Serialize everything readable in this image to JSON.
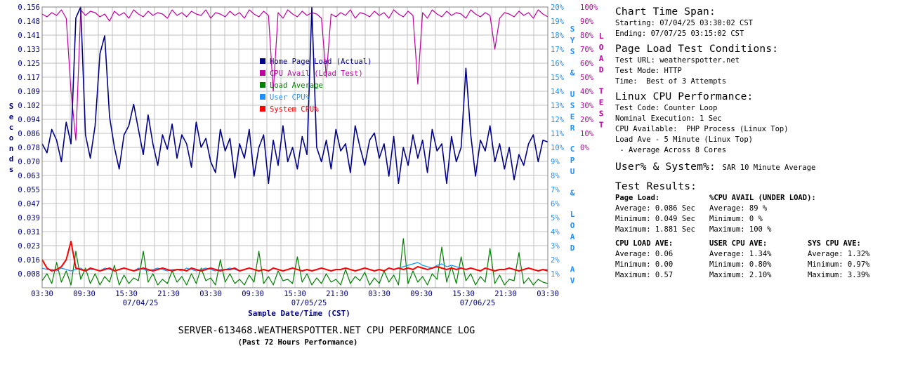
{
  "chart_data": {
    "type": "line",
    "title": "SERVER-613468.WEATHERSPOTTER.NET CPU PERFORMANCE LOG",
    "subtitle": "(Past 72 Hours Performance)",
    "xlabel": "Sample Date/Time (CST)",
    "ylabel_left": "Seconds",
    "ylabel_right_inner": "SYS & USER CPU & LOAD AV",
    "ylabel_right_outer": "LOAD TEST",
    "x_tick_labels": [
      "03:30",
      "09:30",
      "15:30",
      "21:30",
      "03:30",
      "09:30",
      "15:30",
      "21:30",
      "03:30",
      "09:30",
      "15:30",
      "21:30",
      "03:30"
    ],
    "date_labels": [
      "07/04/25",
      "07/05/25",
      "07/06/25"
    ],
    "y_left_ticks": [
      "0.156",
      "0.148",
      "0.141",
      "0.133",
      "0.125",
      "0.117",
      "0.109",
      "0.102",
      "0.094",
      "0.086",
      "0.078",
      "0.070",
      "0.063",
      "0.055",
      "0.047",
      "0.039",
      "0.031",
      "0.023",
      "0.016",
      "0.008"
    ],
    "y_left_range": [
      0,
      0.156
    ],
    "y_right_inner_ticks": [
      "20%",
      "19%",
      "18%",
      "17%",
      "16%",
      "15%",
      "14%",
      "13%",
      "12%",
      "11%",
      "10%",
      "9%",
      "8%",
      "7%",
      "6%",
      "5%",
      "4%",
      "3%",
      "2%",
      "1%"
    ],
    "y_right_outer_ticks": [
      "100%",
      "90%",
      "80%",
      "70%",
      "60%",
      "50%",
      "40%",
      "30%",
      "20%",
      "10%",
      "0%"
    ],
    "grid": true,
    "legend_placement": "top-center",
    "series": [
      {
        "name": "Home Page Load (Actual)",
        "color": "#00008b",
        "axis": "seconds",
        "values": [
          0.08,
          0.075,
          0.088,
          0.082,
          0.07,
          0.092,
          0.08,
          0.15,
          0.156,
          0.085,
          0.072,
          0.09,
          0.13,
          0.14,
          0.095,
          0.078,
          0.066,
          0.085,
          0.09,
          0.102,
          0.088,
          0.074,
          0.096,
          0.08,
          0.068,
          0.085,
          0.077,
          0.091,
          0.072,
          0.085,
          0.08,
          0.067,
          0.092,
          0.078,
          0.083,
          0.07,
          0.064,
          0.088,
          0.076,
          0.083,
          0.061,
          0.08,
          0.072,
          0.088,
          0.062,
          0.078,
          0.085,
          0.058,
          0.082,
          0.068,
          0.09,
          0.07,
          0.078,
          0.066,
          0.084,
          0.074,
          0.156,
          0.078,
          0.07,
          0.082,
          0.066,
          0.088,
          0.076,
          0.08,
          0.064,
          0.09,
          0.078,
          0.068,
          0.082,
          0.086,
          0.072,
          0.08,
          0.062,
          0.084,
          0.058,
          0.078,
          0.068,
          0.085,
          0.072,
          0.082,
          0.064,
          0.088,
          0.076,
          0.08,
          0.058,
          0.084,
          0.07,
          0.078,
          0.122,
          0.085,
          0.062,
          0.082,
          0.076,
          0.09,
          0.07,
          0.08,
          0.066,
          0.078,
          0.06,
          0.074,
          0.068,
          0.08,
          0.085,
          0.07,
          0.082,
          0.081
        ]
      },
      {
        "name": "CPU Avail (Load Test)",
        "color": "#c000a0",
        "axis": "load_test",
        "values": [
          95,
          93,
          96,
          94,
          98,
          92,
          40,
          5,
          98,
          94,
          97,
          96,
          93,
          95,
          90,
          97,
          94,
          96,
          92,
          98,
          95,
          93,
          97,
          94,
          96,
          95,
          92,
          98,
          94,
          96,
          93,
          97,
          95,
          94,
          98,
          92,
          96,
          95,
          93,
          97,
          94,
          96,
          92,
          98,
          95,
          93,
          97,
          94,
          40,
          96,
          92,
          98,
          95,
          93,
          97,
          94,
          96,
          95,
          92,
          50,
          95,
          93,
          96,
          94,
          98,
          92,
          96,
          95,
          93,
          97,
          94,
          96,
          92,
          98,
          95,
          93,
          97,
          94,
          45,
          96,
          92,
          98,
          95,
          93,
          97,
          94,
          96,
          95,
          92,
          98,
          95,
          93,
          96,
          94,
          70,
          92,
          96,
          95,
          93,
          97,
          94,
          96,
          92,
          98,
          95,
          93
        ]
      },
      {
        "name": "Load Average",
        "color": "#008000",
        "axis": "sys_user_pct",
        "values": [
          0.5,
          1.0,
          0.3,
          1.8,
          0.4,
          1.2,
          0.2,
          2.6,
          0.6,
          1.4,
          0.3,
          1.0,
          0.2,
          0.8,
          0.4,
          1.6,
          0.2,
          0.9,
          0.3,
          0.7,
          0.5,
          2.6,
          0.4,
          1.0,
          0.2,
          0.6,
          0.3,
          1.2,
          0.4,
          0.8,
          0.2,
          1.0,
          0.3,
          1.4,
          0.5,
          0.7,
          0.2,
          2.0,
          0.4,
          1.0,
          0.3,
          0.6,
          0.2,
          0.9,
          0.4,
          2.6,
          0.3,
          0.8,
          0.2,
          1.2,
          0.5,
          0.6,
          0.3,
          2.2,
          0.4,
          1.0,
          0.2,
          0.7,
          0.3,
          1.0,
          0.4,
          0.6,
          0.2,
          1.3,
          0.3,
          0.8,
          0.5,
          1.1,
          0.2,
          0.7,
          0.3,
          1.2,
          0.4,
          0.9,
          0.2,
          3.5,
          0.3,
          1.2,
          0.4,
          0.8,
          0.2,
          1.0,
          0.6,
          2.9,
          0.4,
          1.5,
          0.3,
          2.2,
          0.5,
          1.0,
          0.2,
          0.8,
          0.4,
          2.8,
          0.3,
          0.9,
          0.2,
          0.6,
          0.5,
          2.5,
          0.3,
          0.7,
          0.2,
          0.6,
          0.4,
          0.3
        ]
      },
      {
        "name": "User CPU%",
        "color": "#1e90ff",
        "axis": "sys_user_pct",
        "values": [
          1.4,
          1.3,
          1.3,
          1.2,
          1.4,
          1.3,
          1.2,
          1.3,
          1.4,
          1.2,
          1.3,
          1.3,
          1.2,
          1.4,
          1.3,
          1.2,
          1.3,
          1.4,
          1.3,
          1.2,
          1.4,
          1.3,
          1.2,
          1.3,
          1.4,
          1.3,
          1.2,
          1.3,
          1.3,
          1.2,
          1.4,
          1.3,
          1.2,
          1.3,
          1.4,
          1.3,
          1.2,
          1.3,
          1.3,
          1.4,
          1.3,
          1.2,
          1.3,
          1.4,
          1.3,
          1.2,
          1.3,
          1.2,
          1.4,
          1.3,
          1.2,
          1.3,
          1.4,
          1.3,
          1.2,
          1.3,
          1.2,
          1.3,
          1.4,
          1.3,
          1.2,
          1.3,
          1.3,
          1.4,
          1.3,
          1.2,
          1.3,
          1.4,
          1.3,
          1.2,
          1.3,
          1.2,
          1.4,
          1.3,
          1.4,
          1.5,
          1.6,
          1.7,
          1.8,
          1.6,
          1.5,
          1.4,
          1.6,
          1.7,
          1.5,
          1.6,
          1.5,
          1.4,
          1.3,
          1.4,
          1.3,
          1.2,
          1.4,
          1.3,
          1.2,
          1.3,
          1.3,
          1.4,
          1.3,
          1.2,
          1.3,
          1.4,
          1.3,
          1.2,
          1.3,
          1.3
        ]
      },
      {
        "name": "System CPU%",
        "color": "#ff0000",
        "axis": "sys_user_pct",
        "values": [
          2.0,
          1.4,
          1.2,
          1.3,
          1.5,
          2.0,
          3.3,
          1.4,
          1.3,
          1.2,
          1.4,
          1.3,
          1.2,
          1.3,
          1.4,
          1.2,
          1.3,
          1.4,
          1.3,
          1.2,
          1.3,
          1.4,
          1.3,
          1.2,
          1.3,
          1.4,
          1.3,
          1.2,
          1.3,
          1.3,
          1.2,
          1.4,
          1.3,
          1.2,
          1.3,
          1.4,
          1.3,
          1.2,
          1.3,
          1.3,
          1.4,
          1.2,
          1.3,
          1.4,
          1.3,
          1.2,
          1.3,
          1.2,
          1.4,
          1.3,
          1.2,
          1.3,
          1.4,
          1.3,
          1.2,
          1.3,
          1.2,
          1.3,
          1.4,
          1.3,
          1.2,
          1.3,
          1.3,
          1.4,
          1.3,
          1.2,
          1.3,
          1.4,
          1.3,
          1.2,
          1.3,
          1.2,
          1.4,
          1.3,
          1.4,
          1.3,
          1.4,
          1.3,
          1.5,
          1.4,
          1.3,
          1.4,
          1.5,
          1.4,
          1.3,
          1.4,
          1.3,
          1.4,
          1.3,
          1.4,
          1.3,
          1.2,
          1.4,
          1.3,
          1.2,
          1.3,
          1.3,
          1.4,
          1.3,
          1.2,
          1.3,
          1.4,
          1.3,
          1.2,
          1.3,
          1.2
        ]
      }
    ]
  },
  "colors": {
    "axis_blue": "#000080",
    "right_axis_cyan": "#1e90ff",
    "right_axis_magenta": "#c000a0",
    "grid": "#c0c0c0"
  },
  "info": {
    "time_span": {
      "heading": "Chart Time Span:",
      "starting": "Starting: 07/04/25 03:30:02 CST",
      "ending": "Ending: 07/07/25 03:15:02 CST"
    },
    "conditions": {
      "heading": "Page Load Test Conditions:",
      "url": "Test URL: weatherspotter.net",
      "mode": "Test Mode: HTTP",
      "time": "Time:  Best of 3 Attempts"
    },
    "linux": {
      "heading": "Linux CPU Performance:",
      "code": "Test Code: Counter Loop",
      "nominal": "Nominal Execution: 1 Sec",
      "avail": "CPU Available:  PHP Process (Linux Top)",
      "loadave": "Load Ave - 5 Minute (Linux Top)",
      "cores": " - Average Across 8 Cores"
    },
    "usersys": {
      "heading": "User% & System%:",
      "note": "SAR 10 Minute Average"
    },
    "results": {
      "heading": "Test Results:",
      "page_load": {
        "title": "Page Load:",
        "average": "Average: 0.086 Sec",
        "minimum": "Minimum: 0.049 Sec",
        "maximum": "Maximum: 1.881 Sec"
      },
      "cpu_avail": {
        "title": "%CPU AVAIL (UNDER LOAD):",
        "average": "Average: 89 %",
        "minimum": "Minimum: 0 %",
        "maximum": "Maximum: 100 %"
      },
      "cpu_load": {
        "title": "CPU LOAD AVE:",
        "average": "Average: 0.06",
        "minimum": "Minimum: 0.00",
        "maximum": "Maximum: 0.57"
      },
      "user_cpu": {
        "title": "USER CPU AVE:",
        "average": "Average: 1.34%",
        "minimum": "Minimum: 0.80%",
        "maximum": "Maximum: 2.10%"
      },
      "sys_cpu": {
        "title": "SYS CPU AVE:",
        "average": "Average: 1.32%",
        "minimum": "Minimum: 0.97%",
        "maximum": "Maximum: 3.39%"
      }
    }
  }
}
